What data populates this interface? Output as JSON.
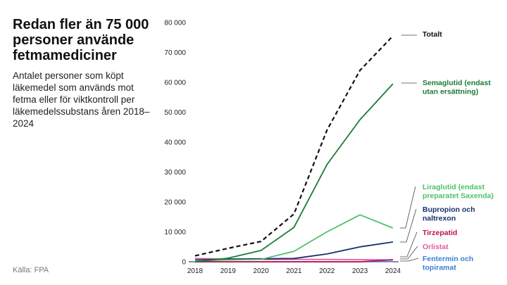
{
  "header": {
    "title": "Redan fler än 75 000 personer använde fetmamediciner",
    "subtitle": "Antalet personer som köpt läkemedel som används mot fetma eller för viktkontroll per läkemedelssubstans åren 2018–2024"
  },
  "source": "Källa: FPA",
  "chart_data": {
    "type": "line",
    "title": "Redan fler än 75 000 personer använde fetmamediciner",
    "subtitle": "Antalet personer som köpt läkemedel som används mot fetma eller för viktkontroll per läkemedelssubstans åren 2018–2024",
    "xlabel": "",
    "ylabel": "",
    "x": [
      2018,
      2019,
      2020,
      2021,
      2022,
      2023,
      2024
    ],
    "ylim": [
      0,
      80000
    ],
    "yticks": [
      0,
      10000,
      20000,
      30000,
      40000,
      50000,
      60000,
      70000,
      80000
    ],
    "ytick_labels": [
      "0",
      "10 000",
      "20 000",
      "30 000",
      "40 000",
      "50 000",
      "60 000",
      "70 000",
      "80 000"
    ],
    "grid": false,
    "legend": "direct labels on the right",
    "series": [
      {
        "name": "Totalt",
        "lines": [
          "Totalt"
        ],
        "color": "#111111",
        "dashed": true,
        "values": [
          2000,
          4500,
          6800,
          16000,
          44000,
          64000,
          75500
        ]
      },
      {
        "name": "Semaglutid (endast utan ersättning)",
        "lines": [
          "Semaglutid (endast",
          "utan ersättning)"
        ],
        "color": "#1b7a3a",
        "dashed": false,
        "values": [
          0,
          1200,
          3800,
          11500,
          32500,
          47500,
          59500
        ]
      },
      {
        "name": "Liraglutid (endast preparatet Saxenda)",
        "lines": [
          "Liraglutid (endast",
          "preparatet Saxenda)"
        ],
        "color": "#4cc26b",
        "dashed": false,
        "values": [
          300,
          600,
          800,
          3500,
          10000,
          15700,
          11300
        ]
      },
      {
        "name": "Bupropion och naltrexon",
        "lines": [
          "Bupropion och",
          "naltrexon"
        ],
        "color": "#17306e",
        "dashed": false,
        "values": [
          600,
          900,
          1000,
          1100,
          2600,
          5000,
          6600
        ]
      },
      {
        "name": "Tirzepatid",
        "lines": [
          "Tirzepatid"
        ],
        "color": "#c0104f",
        "dashed": false,
        "values": [
          0,
          0,
          0,
          0,
          0,
          0,
          700
        ]
      },
      {
        "name": "Orlistat",
        "lines": [
          "Orlistat"
        ],
        "color": "#e45aa0",
        "dashed": false,
        "values": [
          1100,
          900,
          800,
          800,
          800,
          700,
          600
        ]
      },
      {
        "name": "Fentermin och topiramat",
        "lines": [
          "Fentermin och",
          "topiramat"
        ],
        "color": "#3d7fd1",
        "dashed": false,
        "values": [
          0,
          0,
          0,
          0,
          0,
          0,
          100
        ]
      }
    ]
  }
}
